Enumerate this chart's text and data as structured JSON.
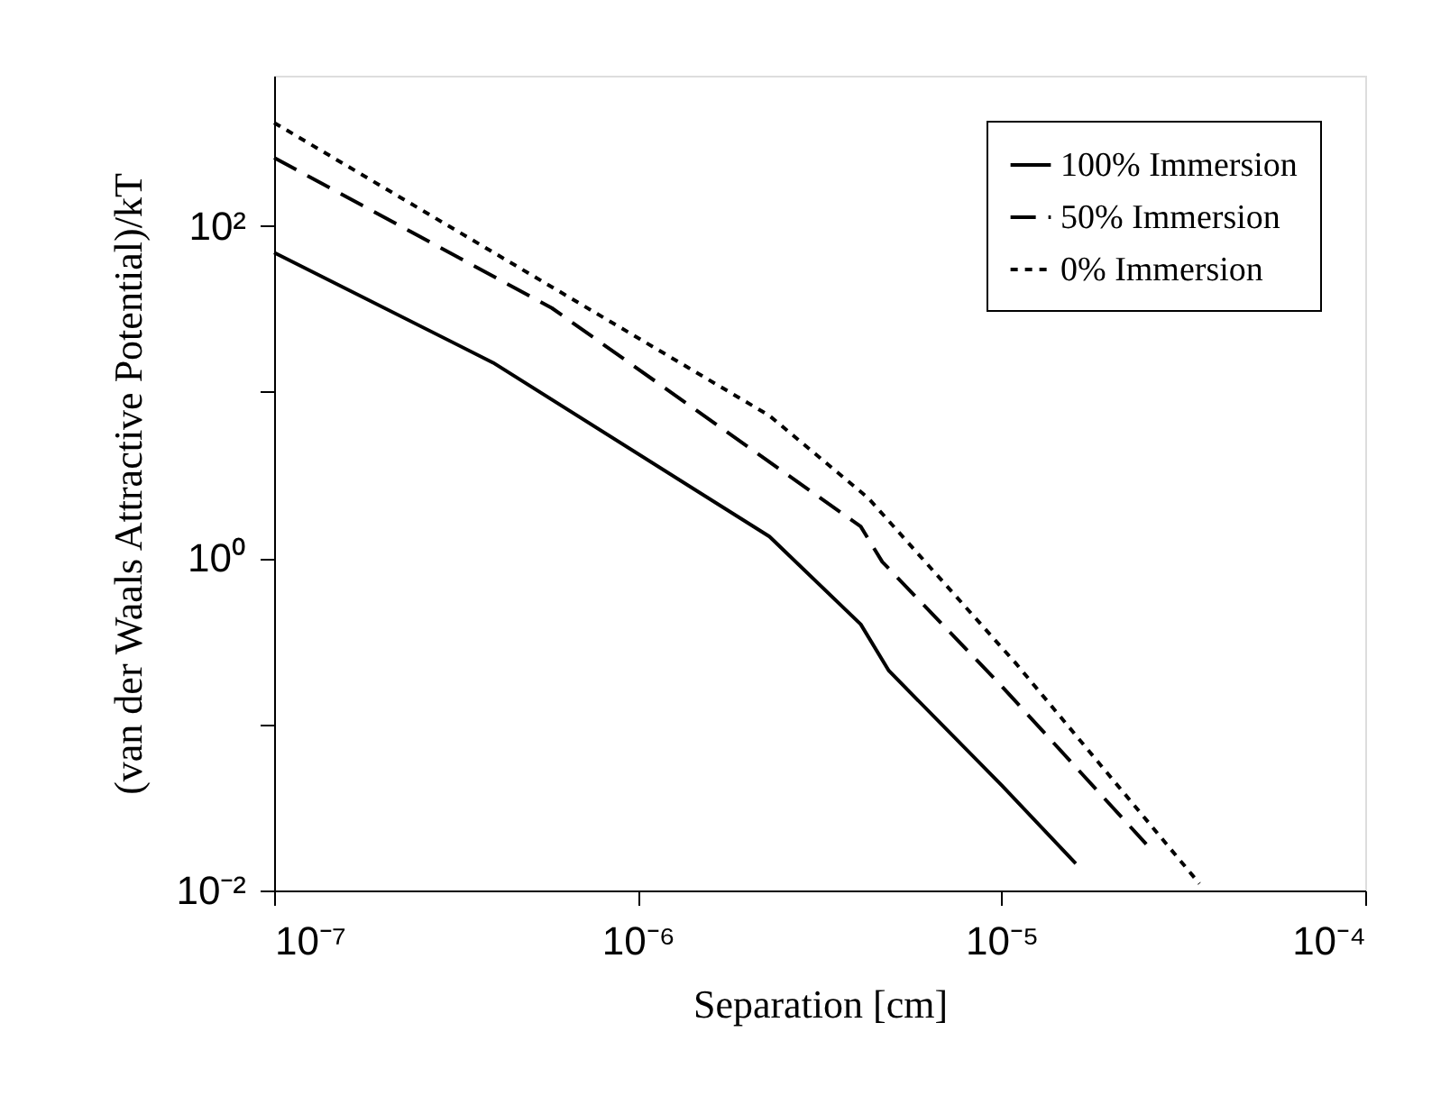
{
  "chart_data": {
    "type": "line",
    "xlabel": "Separation [cm]",
    "ylabel": "(van der Waals Attractive Potential)/kT",
    "log": "xy",
    "grid": false,
    "legend": "top right",
    "marker": "none",
    "xlim": [
      1e-07,
      0.0001
    ],
    "ylim": [
      0.01,
      800
    ],
    "xticks": [
      {
        "value": 1e-07,
        "label": "10⁻⁷"
      },
      {
        "value": 1e-06,
        "label": "10⁻⁶"
      },
      {
        "value": 1e-05,
        "label": "10⁻⁵"
      },
      {
        "value": 0.0001,
        "label": "10⁻⁴"
      }
    ],
    "yticks": [
      {
        "value": 0.01,
        "label": "10⁻²"
      },
      {
        "value": 0.1,
        "label": null
      },
      {
        "value": 1,
        "label": "10⁰"
      },
      {
        "value": 10,
        "label": null
      },
      {
        "value": 100,
        "label": "10²"
      }
    ],
    "series": [
      {
        "name": "100% Immersion",
        "color": "#000000",
        "line_style": "solid",
        "x": [
          1e-07,
          4e-07,
          2.3e-06,
          4.1e-06,
          4.9e-06,
          1e-05,
          1.6e-05
        ],
        "values": [
          69,
          15,
          1.35,
          0.4,
          0.21,
          0.043,
          0.0145
        ]
      },
      {
        "name": "50% Immersion",
        "color": "#000000",
        "line_style": "dashed",
        "x": [
          1e-07,
          5.8e-07,
          4.1e-06,
          4.7e-06,
          1e-05,
          2.5e-05
        ],
        "values": [
          257,
          32,
          1.55,
          0.95,
          0.17,
          0.019
        ]
      },
      {
        "name": "0% Immersion",
        "color": "#000000",
        "line_style": "dotted",
        "x": [
          1e-07,
          6e-07,
          2.3e-06,
          4.3e-06,
          1.1e-05,
          3.5e-05
        ],
        "values": [
          417,
          41,
          7.2,
          2.3,
          0.23,
          0.011
        ]
      }
    ]
  }
}
